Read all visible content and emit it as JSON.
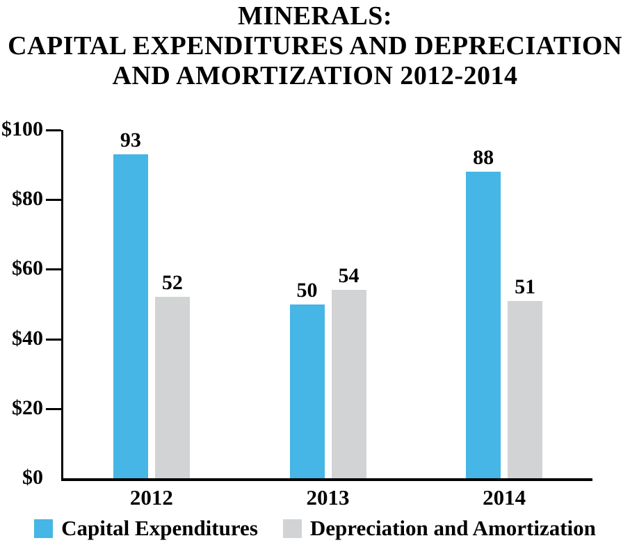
{
  "title": {
    "lines": [
      "MINERALS:",
      "CAPITAL EXPENDITURES AND DEPRECIATION",
      "AND AMORTIZATION 2012-2014"
    ]
  },
  "chart_data": {
    "type": "bar",
    "title": "MINERALS: CAPITAL EXPENDITURES AND DEPRECIATION AND AMORTIZATION 2012-2014",
    "categories": [
      "2012",
      "2013",
      "2014"
    ],
    "series": [
      {
        "name": "Capital Expenditures",
        "color": "#45B6E5",
        "values": [
          93,
          50,
          88
        ]
      },
      {
        "name": "Depreciation and Amortization",
        "color": "#D1D3D4",
        "values": [
          52,
          54,
          51
        ]
      }
    ],
    "xlabel": "",
    "ylabel": "",
    "ylim": [
      0,
      100
    ],
    "y_ticks": [
      {
        "label": "$0",
        "value": 0,
        "tick": false
      },
      {
        "label": "$20",
        "value": 20,
        "tick": true
      },
      {
        "label": "$40",
        "value": 40,
        "tick": true
      },
      {
        "label": "$60",
        "value": 60,
        "tick": true
      },
      {
        "label": "$80",
        "value": 80,
        "tick": true
      },
      {
        "label": "$100",
        "value": 100,
        "tick": true
      }
    ],
    "value_labels": true,
    "grid": false,
    "legend_position": "bottom",
    "axis_color": "#000000",
    "text_color": "#000000",
    "background_color": "#FFFFFF"
  }
}
